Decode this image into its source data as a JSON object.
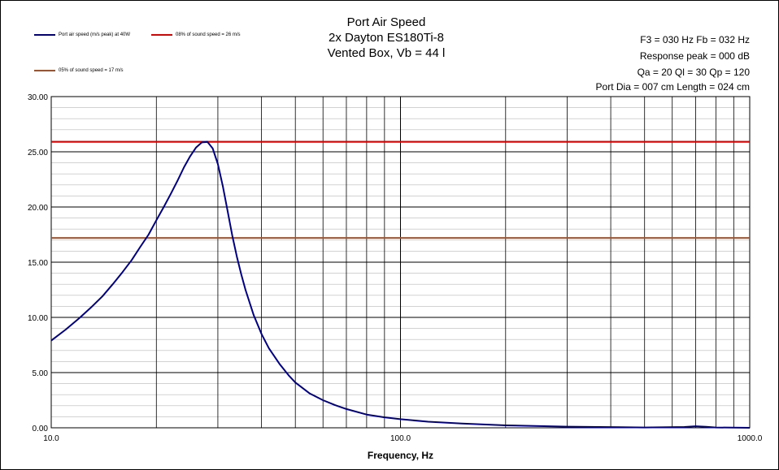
{
  "chart_data": {
    "type": "line",
    "title": [
      "Port Air Speed",
      "2x Dayton ES180Ti-8",
      "Vented Box, Vb = 44 l"
    ],
    "xlabel": "Frequency, Hz",
    "ylabel": "",
    "xscale": "log",
    "xlim": [
      10,
      1000
    ],
    "ylim": [
      0,
      30
    ],
    "yticks": [
      "30.00",
      "25.00",
      "20.00",
      "15.00",
      "10.00",
      "5.00",
      "0.00"
    ],
    "xticks": [
      "10.0",
      "100.0",
      "1000.0"
    ],
    "grid": true,
    "info": [
      "F3 = 030  Hz   Fb = 032  Hz",
      "Response peak = 000  dB",
      "Qa = 20   Ql = 30   Qp = 120",
      "Port Dia = 007  cm   Length = 024  cm"
    ],
    "legend": [
      {
        "label": "Port air speed (m/s peak) at 40W",
        "color": "#000080"
      },
      {
        "label": "08% of sound speed = 26 m/s",
        "color": "#e00000"
      },
      {
        "label": "05% of sound speed = 17 m/s",
        "color": "#a0522d"
      }
    ],
    "series": [
      {
        "name": "Port air speed (m/s peak) at 40W",
        "color": "#000080",
        "x": [
          10,
          11,
          12,
          13,
          14,
          15,
          16,
          17,
          18,
          19,
          20,
          21,
          22,
          23,
          24,
          25,
          26,
          27,
          28,
          29,
          30,
          31,
          32,
          33,
          34,
          35,
          36,
          38,
          40,
          42,
          45,
          48,
          50,
          55,
          60,
          65,
          70,
          80,
          90,
          100,
          120,
          150,
          200,
          300,
          500,
          650,
          700,
          750,
          800,
          1000
        ],
        "values": [
          7.9,
          8.9,
          9.9,
          10.9,
          11.9,
          13.0,
          14.1,
          15.2,
          16.4,
          17.5,
          18.8,
          20.0,
          21.2,
          22.4,
          23.6,
          24.6,
          25.4,
          25.85,
          25.9,
          25.3,
          23.9,
          21.9,
          19.6,
          17.4,
          15.5,
          13.9,
          12.5,
          10.2,
          8.5,
          7.2,
          5.8,
          4.7,
          4.1,
          3.1,
          2.5,
          2.05,
          1.7,
          1.2,
          0.95,
          0.78,
          0.55,
          0.38,
          0.22,
          0.1,
          0.03,
          0.07,
          0.14,
          0.09,
          0.03,
          0.0
        ]
      },
      {
        "name": "08% of sound speed = 26 m/s",
        "color": "#e00000",
        "x": [
          10,
          1000
        ],
        "values": [
          25.9,
          25.9
        ]
      },
      {
        "name": "05% of sound speed = 17 m/s",
        "color": "#a0522d",
        "x": [
          10,
          1000
        ],
        "values": [
          17.2,
          17.2
        ]
      }
    ]
  }
}
